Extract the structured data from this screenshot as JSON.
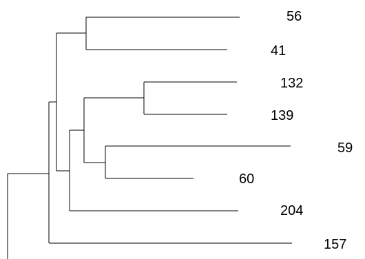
{
  "tree": {
    "leaves": [
      {
        "id": "leaf-56",
        "label": "56"
      },
      {
        "id": "leaf-41",
        "label": "41"
      },
      {
        "id": "leaf-132",
        "label": "132"
      },
      {
        "id": "leaf-139",
        "label": "139"
      },
      {
        "id": "leaf-59",
        "label": "59"
      },
      {
        "id": "leaf-60",
        "label": "60"
      },
      {
        "id": "leaf-204",
        "label": "204"
      },
      {
        "id": "leaf-157",
        "label": "157"
      }
    ],
    "line_color": "#000000"
  }
}
